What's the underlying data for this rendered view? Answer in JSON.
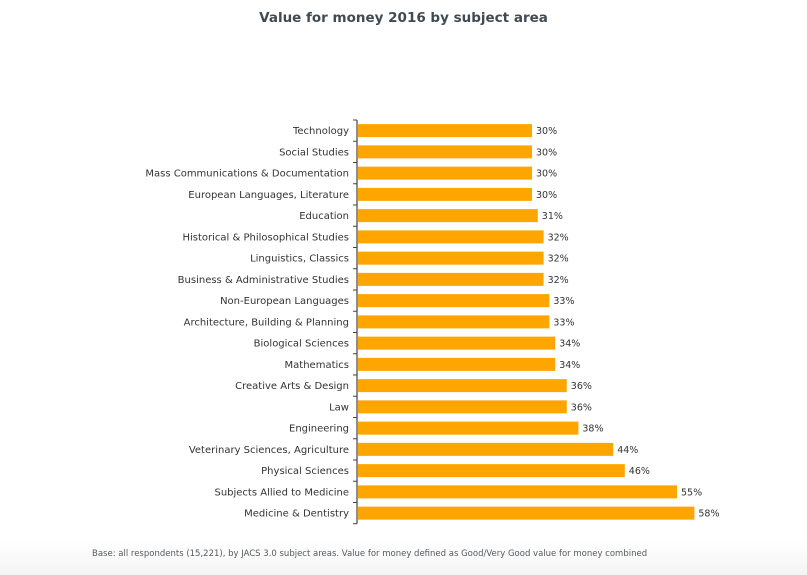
{
  "page": {
    "title": "Value for money 2016 by subject area",
    "footnote": "Base: all respondents (15,221), by JACS 3.0 subject areas. Value for money defined as Good/Very Good value for money combined"
  },
  "colors": {
    "bar": "#ffa500",
    "axis": "#444444",
    "label": "#333333"
  },
  "chart_data": {
    "type": "bar",
    "orientation": "horizontal",
    "title": "Value for money 2016 by subject area",
    "xlabel": "",
    "ylabel": "",
    "xlim": [
      0,
      100
    ],
    "value_suffix": "%",
    "grid": false,
    "categories": [
      "Technology",
      "Social Studies",
      "Mass Communications & Documentation",
      "European Languages, Literature",
      "Education",
      "Historical & Philosophical Studies",
      "Linguistics, Classics",
      "Business & Administrative Studies",
      "Non-European Languages",
      "Architecture, Building & Planning",
      "Biological Sciences",
      "Mathematics",
      "Creative Arts & Design",
      "Law",
      "Engineering",
      "Veterinary Sciences, Agriculture",
      "Physical Sciences",
      "Subjects Allied to Medicine",
      "Medicine & Dentistry"
    ],
    "values": [
      30,
      30,
      30,
      30,
      31,
      32,
      32,
      32,
      33,
      33,
      34,
      34,
      36,
      36,
      38,
      44,
      46,
      55,
      58
    ],
    "data_labels": [
      "30%",
      "30%",
      "30%",
      "30%",
      "31%",
      "32%",
      "32%",
      "32%",
      "33%",
      "33%",
      "34%",
      "34%",
      "36%",
      "36%",
      "38%",
      "44%",
      "46%",
      "55%",
      "58%"
    ]
  }
}
